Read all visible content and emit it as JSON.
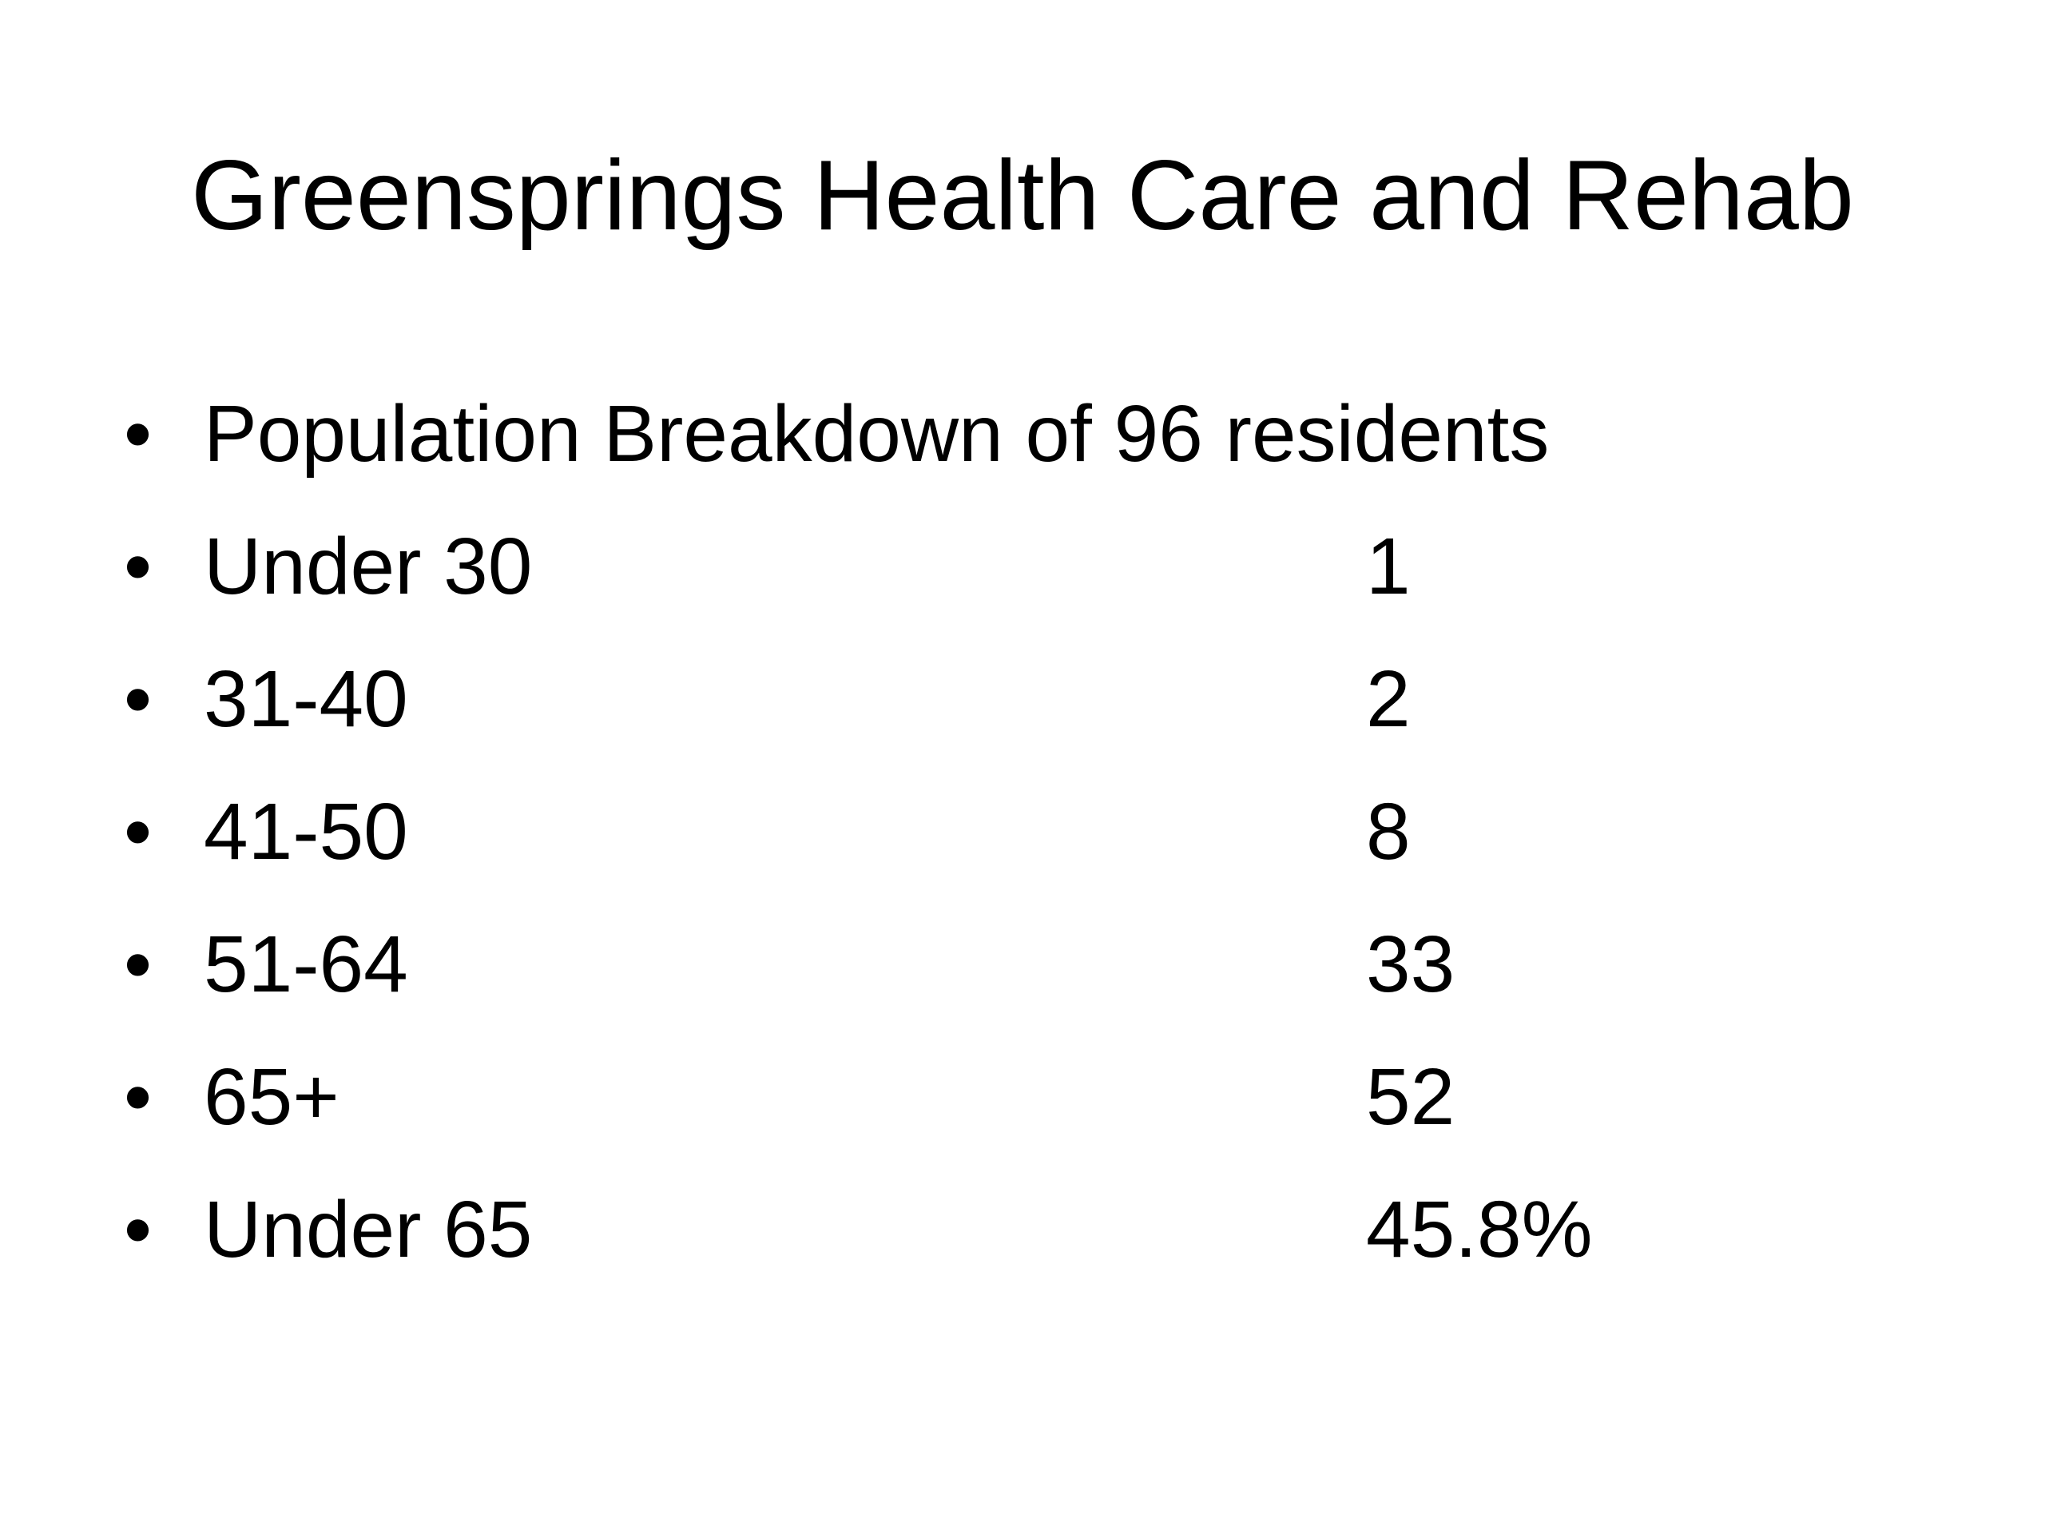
{
  "slide": {
    "title": "Greensprings Health Care and Rehab",
    "bullet_glyph": "•",
    "items": [
      {
        "label": "Population Breakdown of 96 residents",
        "value": ""
      },
      {
        "label": "Under 30",
        "value": "1"
      },
      {
        "label": "31-40",
        "value": "2"
      },
      {
        "label": "41-50",
        "value": "8"
      },
      {
        "label": "51-64",
        "value": "33"
      },
      {
        "label": "65+",
        "value": "52"
      },
      {
        "label": "Under 65",
        "value": "45.8%"
      }
    ]
  }
}
